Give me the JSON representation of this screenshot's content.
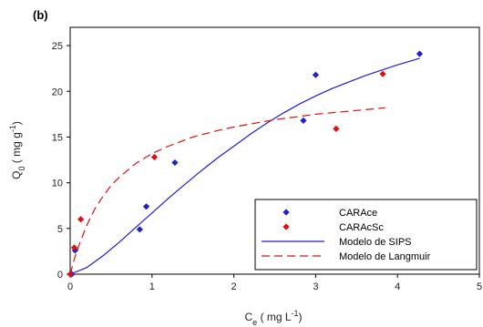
{
  "chart_data": {
    "type": "scatter",
    "panel_label": "(b)",
    "xlabel": {
      "main": "C",
      "sub": "e",
      "rest": " ( mg L",
      "sup": "-1",
      "end": ")"
    },
    "ylabel": {
      "main": "Q",
      "sub": "0",
      "rest": " ( mg g",
      "sup": "-1",
      "end": ")"
    },
    "xlim": [
      0,
      5
    ],
    "ylim": [
      0,
      27
    ],
    "xticks": [
      0,
      1,
      2,
      3,
      4,
      5
    ],
    "yticks": [
      0,
      5,
      10,
      15,
      20,
      25
    ],
    "grid": false,
    "legend_position": "bottom-right",
    "series": [
      {
        "name": "CARAce",
        "kind": "points",
        "marker": "diamond",
        "color": "#1f1fd6",
        "x": [
          0.02,
          0.06,
          0.85,
          0.93,
          1.28,
          2.85,
          3.0,
          4.27
        ],
        "y": [
          0.0,
          2.6,
          4.9,
          7.4,
          12.2,
          16.8,
          21.8,
          24.1
        ]
      },
      {
        "name": "CARAcSc",
        "kind": "points",
        "marker": "diamond",
        "color": "#e01010",
        "x": [
          0.0,
          0.05,
          0.13,
          1.03,
          3.25,
          3.82
        ],
        "y": [
          0.0,
          2.9,
          6.0,
          12.8,
          15.9,
          21.9
        ]
      },
      {
        "name": "Modelo de SIPS",
        "kind": "line",
        "dash": "solid",
        "color": "#1f1fd6",
        "x": [
          0.0,
          0.2,
          0.4,
          0.6,
          0.8,
          1.0,
          1.2,
          1.4,
          1.6,
          1.8,
          2.0,
          2.2,
          2.4,
          2.6,
          2.8,
          3.0,
          3.2,
          3.4,
          3.6,
          3.8,
          4.0,
          4.27
        ],
        "y": [
          0.0,
          0.72,
          2.0,
          3.5,
          5.1,
          6.7,
          8.3,
          9.8,
          11.3,
          12.7,
          14.0,
          15.3,
          16.5,
          17.6,
          18.6,
          19.5,
          20.3,
          21.0,
          21.7,
          22.3,
          22.9,
          23.6
        ]
      },
      {
        "name": "Modelo de Langmuir",
        "kind": "line",
        "dash": "dashed",
        "color": "#e01010",
        "x": [
          0.0,
          0.05,
          0.1,
          0.2,
          0.3,
          0.4,
          0.5,
          0.6,
          0.8,
          1.0,
          1.2,
          1.5,
          1.8,
          2.0,
          2.5,
          3.0,
          3.5,
          3.85
        ],
        "y": [
          0.0,
          1.6,
          3.0,
          5.3,
          7.1,
          8.5,
          9.7,
          10.6,
          12.1,
          13.2,
          14.0,
          15.0,
          15.7,
          16.1,
          16.9,
          17.5,
          17.9,
          18.2
        ]
      }
    ]
  }
}
